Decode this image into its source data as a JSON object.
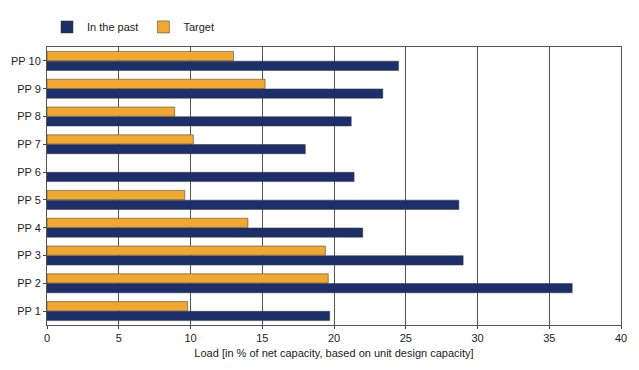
{
  "chart_data": {
    "type": "bar",
    "orientation": "horizontal",
    "categories": [
      "PP 1",
      "PP 2",
      "PP 3",
      "PP 4",
      "PP 5",
      "PP 6",
      "PP 7",
      "PP 8",
      "PP 9",
      "PP 10"
    ],
    "series": [
      {
        "name": "In the past",
        "color": "#1c2f6b",
        "values": [
          19.7,
          36.6,
          29.0,
          22.0,
          28.7,
          21.4,
          18.0,
          21.2,
          23.4,
          24.5
        ]
      },
      {
        "name": "Target",
        "color": "#f2a72e",
        "values": [
          9.8,
          19.6,
          19.4,
          14.0,
          9.6,
          null,
          10.2,
          8.9,
          15.2,
          13.0
        ]
      }
    ],
    "x_label": "Load [in % of net capacity, based on unit design capacity]",
    "xlim": [
      0,
      40
    ],
    "xticks": [
      0,
      5,
      10,
      15,
      20,
      25,
      30,
      35,
      40
    ],
    "grid": true,
    "legend": "top left"
  }
}
